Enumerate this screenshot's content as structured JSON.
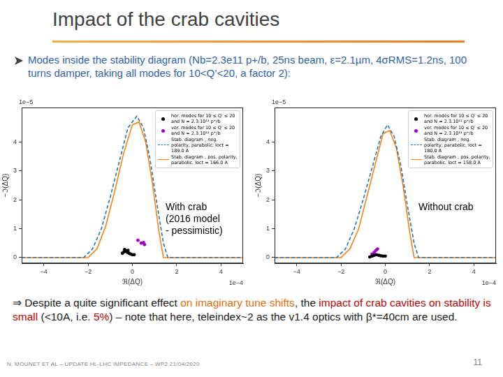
{
  "title": "Impact of the crab cavities",
  "bullet": {
    "text": "Modes inside the stability diagram (Nb=2.3e11 p+/b, 25ns beam, ε=2.1µm, 4σRMS=1.2ns, 100 turns damper, taking all modes for 10<Q’<20, a factor 2):",
    "color": "#2e5fa8"
  },
  "chart_data": [
    {
      "type": "scatter",
      "xlabel": "ℜ(ΔQ)",
      "ylabel": "−ℑ(ΔQ)",
      "xaxis_offset_text": "1e−4",
      "yaxis_offset_text": "1e−5",
      "xlim": [
        -5,
        5
      ],
      "ylim": [
        -0.2,
        5.2
      ],
      "xticks": [
        {
          "value": -4,
          "label": "−4"
        },
        {
          "value": -2,
          "label": "−2"
        },
        0,
        2,
        4
      ],
      "yticks": [
        0,
        1,
        2,
        3,
        4
      ],
      "grid": false,
      "legend": "upper right",
      "annotations": [
        {
          "lines": [
            "With crab",
            "(2016 model",
            "- pessimistic)"
          ]
        }
      ],
      "series": [
        {
          "name": "hor. modes for 10 ≤ Q′ ≤ 20 and N = 2.3.10¹¹ p⁺/b",
          "type": "scatter",
          "marker": "circle",
          "color": "#000000",
          "x": [
            -0.45,
            -0.38,
            -0.3,
            -0.22,
            -0.15,
            -0.08,
            0.0,
            0.08,
            -0.35,
            -0.2
          ],
          "y": [
            0.15,
            0.2,
            0.22,
            0.18,
            0.15,
            0.12,
            0.1,
            0.1,
            0.28,
            0.25
          ]
        },
        {
          "name": "ver. modes for 10 ≤ Q′ ≤ 20 and N = 2.3.10¹¹ p⁺/b",
          "type": "scatter",
          "marker": "circle",
          "color": "#a000c8",
          "x": [
            0.25,
            0.4,
            0.5,
            0.55
          ],
          "y": [
            0.6,
            0.5,
            0.52,
            0.45
          ]
        },
        {
          "name": "Stab. diagram , neg. polarity, parabolic, Ioct = 189.0 A",
          "type": "line",
          "line_style": "dashed",
          "color": "#1f77b4",
          "x": [
            -5,
            -2.2,
            -1.8,
            -1.4,
            -1.0,
            -0.6,
            -0.2,
            0.2,
            0.5,
            0.8,
            1.1,
            1.4,
            1.6,
            5
          ],
          "y": [
            0,
            0,
            0.3,
            1.0,
            2.1,
            3.3,
            4.5,
            4.9,
            4.5,
            3.4,
            1.9,
            0.5,
            0,
            0
          ]
        },
        {
          "name": "Stab. diagram , pos. polarity, parabolic, Ioct = 166.0 A",
          "type": "line",
          "line_style": "solid",
          "color": "#ff7f0e",
          "x": [
            -5,
            -2.0,
            -1.6,
            -1.2,
            -0.8,
            -0.4,
            0,
            0.3,
            0.6,
            0.9,
            1.2,
            1.4,
            5
          ],
          "y": [
            0,
            0,
            0.3,
            1.1,
            2.3,
            3.6,
            4.6,
            4.7,
            4.0,
            2.6,
            0.9,
            0,
            0
          ]
        }
      ]
    },
    {
      "type": "scatter",
      "xlabel": "ℜ(ΔQ)",
      "ylabel": "−ℑ(ΔQ)",
      "xaxis_offset_text": "1e−4",
      "yaxis_offset_text": "1e−5",
      "xlim": [
        -5,
        5
      ],
      "ylim": [
        -0.2,
        5.2
      ],
      "xticks": [
        {
          "value": -4,
          "label": "−4"
        },
        {
          "value": -2,
          "label": "−2"
        },
        0,
        2,
        4
      ],
      "yticks": [
        0,
        1,
        2,
        3,
        4
      ],
      "grid": false,
      "legend": "upper right",
      "annotations": [
        {
          "lines": [
            "Without crab"
          ]
        }
      ],
      "series": [
        {
          "name": "hor. modes for 10 ≤ Q′ ≤ 20 and N = 2.3.10¹¹ p⁺/b",
          "type": "scatter",
          "marker": "circle",
          "color": "#000000",
          "x": [
            -0.7,
            -0.6,
            -0.5,
            -0.4,
            -0.3,
            -0.2,
            -0.1,
            0.0
          ],
          "y": [
            0.02,
            0.05,
            0.08,
            0.1,
            0.08,
            0.06,
            0.05,
            0.05
          ]
        },
        {
          "name": "ver. modes for 10 ≤ Q′ ≤ 20 and N = 2.3.10¹¹ p⁺/b",
          "type": "scatter",
          "marker": "circle",
          "color": "#a000c8",
          "x": [
            -0.6,
            -0.5,
            -0.42,
            -0.35
          ],
          "y": [
            0.12,
            0.18,
            0.25,
            0.3
          ]
        },
        {
          "name": "Stab. diagram , neg. polarity, parabolic, Ioct = 180.0 A",
          "type": "line",
          "line_style": "dashed",
          "color": "#1f77b4",
          "x": [
            -5,
            -2.2,
            -1.8,
            -1.4,
            -1.0,
            -0.6,
            -0.2,
            0.1,
            0.4,
            0.7,
            1.0,
            1.3,
            1.5,
            5
          ],
          "y": [
            0,
            0,
            0.3,
            1.0,
            2.0,
            3.1,
            4.2,
            4.6,
            4.2,
            3.2,
            1.8,
            0.5,
            0,
            0
          ]
        },
        {
          "name": "Stab. diagram , pos. polarity, parabolic, Ioct = 158.0 A",
          "type": "line",
          "line_style": "solid",
          "color": "#ff7f0e",
          "x": [
            -5,
            -2.0,
            -1.6,
            -1.2,
            -0.8,
            -0.4,
            -0.1,
            0.2,
            0.5,
            0.8,
            1.1,
            1.3,
            5
          ],
          "y": [
            0,
            0,
            0.3,
            1.0,
            2.2,
            3.4,
            4.3,
            4.4,
            3.8,
            2.5,
            0.9,
            0,
            0
          ]
        }
      ]
    }
  ],
  "conclusion": [
    {
      "text": "⇒ Despite a quite significant effect "
    },
    {
      "text": "on imaginary tune shifts",
      "color": "#e46c0a"
    },
    {
      "text": ", the "
    },
    {
      "text": "impact of crab cavities on stability is small",
      "color": "#c00000"
    },
    {
      "text": " (<10A, i.e. "
    },
    {
      "text": "5%",
      "color": "#c00000"
    },
    {
      "text": ") – note that here, teleindex~2 as the v1.4 optics with β*=40cm are used."
    }
  ],
  "footer": "N. MOUNET ET AL – UPDATE HL-LHC IMPEDANCE – WP2 21/04/2020",
  "page_number": 11
}
